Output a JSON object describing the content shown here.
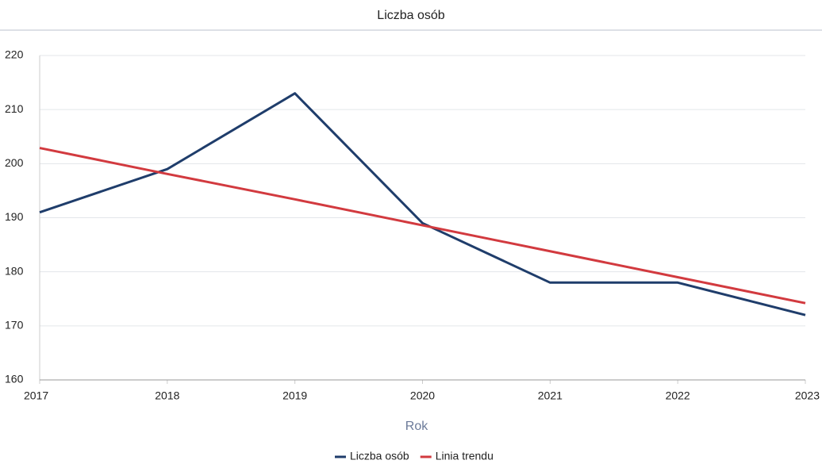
{
  "chart_data": {
    "type": "line",
    "title": "Liczba osób",
    "x_label": "Rok",
    "x": [
      2017,
      2018,
      2019,
      2020,
      2021,
      2022,
      2023
    ],
    "series": [
      {
        "name": "Liczba osób",
        "color": "#1f3d6b",
        "values": [
          191,
          199,
          213,
          189,
          178,
          178,
          172
        ]
      },
      {
        "name": "Linia trendu",
        "color": "#d23a3f",
        "values": [
          202.9,
          198.1,
          193.4,
          188.6,
          183.8,
          179.0,
          174.2
        ]
      }
    ],
    "xlim": [
      2017,
      2023
    ],
    "xticks": [
      2017,
      2018,
      2019,
      2020,
      2021,
      2022,
      2023
    ],
    "ylim": [
      160,
      220
    ],
    "yticks": [
      160,
      170,
      180,
      190,
      200,
      210,
      220
    ],
    "grid": true,
    "legend": "bottom"
  }
}
